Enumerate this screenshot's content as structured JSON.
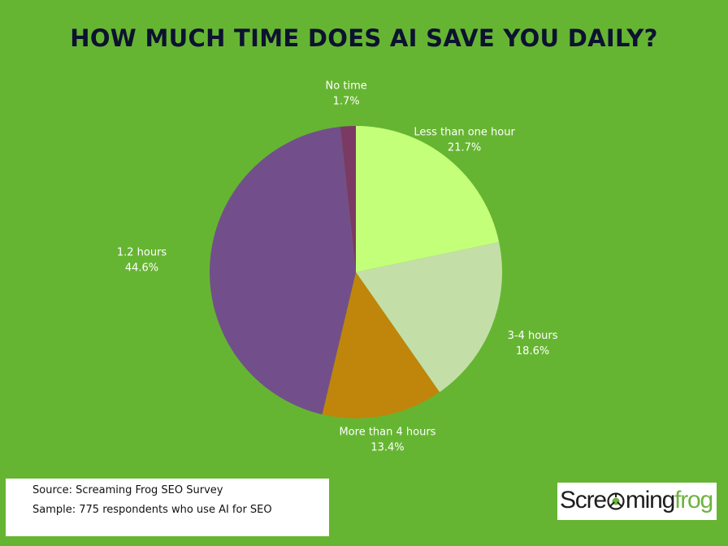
{
  "title": "HOW MUCH TIME DOES AI SAVE YOU DAILY?",
  "chart_data": {
    "type": "pie",
    "title": "HOW MUCH TIME DOES AI SAVE YOU DAILY?",
    "slices": [
      {
        "label": "Less than one hour",
        "value": 21.7,
        "value_label": "21.7%",
        "color": "#c4ff7a"
      },
      {
        "label": "3-4 hours",
        "value": 18.6,
        "value_label": "18.6%",
        "color": "#c3dfa7"
      },
      {
        "label": "More than 4 hours",
        "value": 13.4,
        "value_label": "13.4%",
        "color": "#bf860b"
      },
      {
        "label": "1.2 hours",
        "value": 44.6,
        "value_label": "44.6%",
        "color": "#724f8a"
      },
      {
        "label": "No time",
        "value": 1.7,
        "value_label": "1.7%",
        "color": "#7b3a63"
      }
    ],
    "start": "12 o'clock",
    "direction": "clockwise",
    "legend": "none"
  },
  "footer": {
    "source": "Source: Screaming Frog SEO Survey",
    "sample": "Sample: 775 respondents who use AI for SEO"
  },
  "logo": {
    "text_part1": "Scre",
    "text_part2": "ming",
    "text_part3": "frog",
    "icon": "frog-icon"
  }
}
